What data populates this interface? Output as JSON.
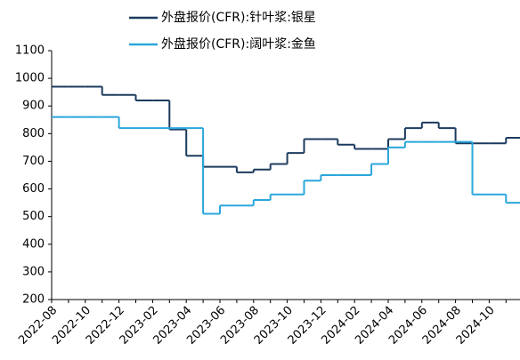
{
  "chart_data": {
    "type": "line",
    "step": true,
    "categories": [
      "2022-08",
      null,
      "2022-10",
      null,
      "2022-12",
      null,
      "2023-02",
      null,
      "2023-04",
      null,
      "2023-06",
      null,
      "2023-08",
      null,
      "2023-10",
      null,
      "2023-12",
      null,
      "2024-02",
      null,
      "2024-04",
      null,
      "2024-06",
      null,
      "2024-08",
      null,
      "2024-10",
      null
    ],
    "series": [
      {
        "name": "外盘报价(CFR):针叶浆:银星",
        "color": "#1c3b5e",
        "values": [
          970,
          970,
          970,
          940,
          940,
          920,
          920,
          815,
          720,
          680,
          680,
          660,
          670,
          690,
          730,
          780,
          780,
          760,
          745,
          745,
          780,
          820,
          840,
          820,
          765,
          765,
          765,
          785
        ]
      },
      {
        "name": "外盘报价(CFR):阔叶浆:金鱼",
        "color": "#2aa7dc",
        "values": [
          860,
          860,
          860,
          860,
          820,
          820,
          820,
          820,
          820,
          510,
          540,
          540,
          560,
          580,
          580,
          630,
          650,
          650,
          650,
          690,
          750,
          770,
          770,
          770,
          770,
          580,
          580,
          550
        ]
      }
    ],
    "ylim": [
      200,
      1100
    ],
    "yticks": [
      200,
      300,
      400,
      500,
      600,
      700,
      800,
      900,
      1000,
      1100
    ],
    "legend": "top"
  }
}
